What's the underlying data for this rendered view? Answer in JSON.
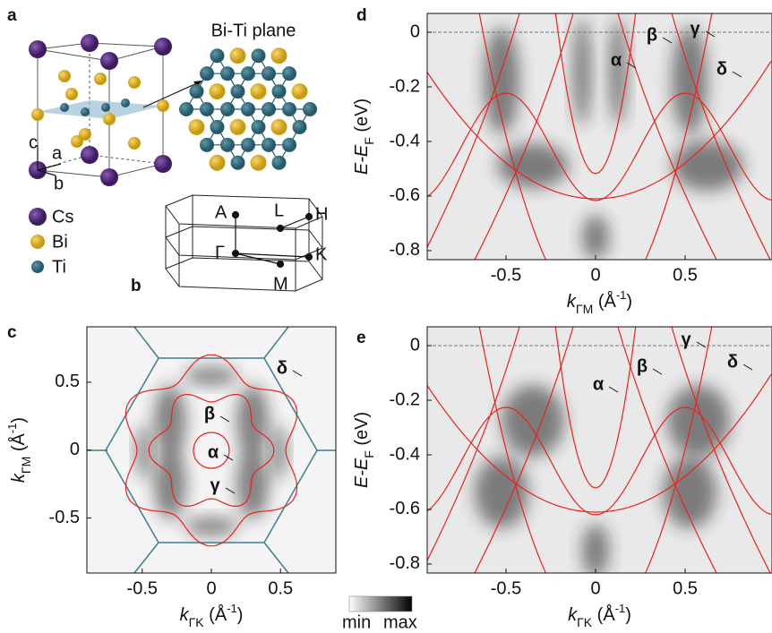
{
  "panel_a": {
    "letter": "a",
    "plane_title": "Bi-Ti plane",
    "axes": [
      "a",
      "b",
      "c"
    ],
    "legend": [
      "Cs",
      "Bi",
      "Ti"
    ]
  },
  "panel_b": {
    "letter": "b",
    "points": {
      "A": "A",
      "L": "L",
      "H": "H",
      "G": "Γ",
      "K": "K",
      "M": "M"
    }
  },
  "panel_c": {
    "letter": "c",
    "xlim": [
      -0.9,
      0.9
    ],
    "ylim": [
      -0.905,
      0.908
    ],
    "xticks": [
      -0.5,
      0,
      0.5
    ],
    "yticks": [
      -0.5,
      0,
      0.5
    ],
    "x_label": {
      "symbol": "k",
      "sub": "ΓK",
      "unit": " (Å",
      "sup": "-1",
      "end": ")"
    },
    "y_label": {
      "symbol": "k",
      "sub": "ΓM",
      "unit": " (Å",
      "sup": "-1",
      "end": ")"
    },
    "bands": [
      "α",
      "β",
      "γ",
      "δ"
    ]
  },
  "panel_d": {
    "letter": "d",
    "xlim": [
      -0.94,
      0.985
    ],
    "ylim": [
      -0.833,
      0.069
    ],
    "xticks": [
      -0.5,
      0,
      0.5
    ],
    "yticks": [
      0,
      -0.2,
      -0.4,
      -0.6,
      -0.8
    ],
    "x_label": {
      "symbol": "k",
      "sub": "ΓM",
      "unit": " (Å",
      "sup": "-1",
      "end": ")"
    },
    "y_label": {
      "symbol": "E-E",
      "sub": "F",
      "unit": " (eV)"
    },
    "bands": [
      "α",
      "β",
      "γ",
      "δ"
    ]
  },
  "panel_e": {
    "letter": "e",
    "xlim": [
      -0.94,
      0.985
    ],
    "ylim": [
      -0.833,
      0.069
    ],
    "xticks": [
      -0.5,
      0,
      0.5
    ],
    "yticks": [
      0,
      -0.2,
      -0.4,
      -0.6,
      -0.8
    ],
    "x_label": {
      "symbol": "k",
      "sub": "ΓK",
      "unit": " (Å",
      "sup": "-1",
      "end": ")"
    },
    "y_label": {
      "symbol": "E-E",
      "sub": "F",
      "unit": " (eV)"
    },
    "bands": [
      "α",
      "β",
      "γ",
      "δ"
    ]
  },
  "colorbar": {
    "min": "min",
    "max": "max"
  }
}
